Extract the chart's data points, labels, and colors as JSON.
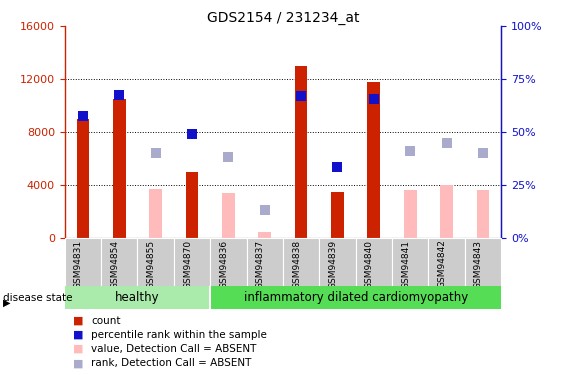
{
  "title": "GDS2154 / 231234_at",
  "samples": [
    "GSM94831",
    "GSM94854",
    "GSM94855",
    "GSM94870",
    "GSM94836",
    "GSM94837",
    "GSM94838",
    "GSM94839",
    "GSM94840",
    "GSM94841",
    "GSM94842",
    "GSM94843"
  ],
  "group_labels": [
    "healthy",
    "inflammatory dilated cardiomyopathy"
  ],
  "healthy_count": 4,
  "idc_count": 8,
  "count_present": [
    9000,
    10500,
    null,
    5000,
    null,
    null,
    13000,
    3500,
    11800,
    null,
    null,
    null
  ],
  "count_absent": [
    null,
    null,
    3700,
    null,
    3400,
    500,
    null,
    null,
    null,
    3600,
    4000,
    3600
  ],
  "rank_present": [
    9200,
    10800,
    null,
    7900,
    null,
    null,
    10700,
    5400,
    10500,
    null,
    null,
    null
  ],
  "rank_absent": [
    null,
    null,
    6400,
    null,
    6100,
    2100,
    null,
    null,
    null,
    6600,
    7200,
    6400
  ],
  "ylim_left": [
    0,
    16000
  ],
  "yticks_left": [
    0,
    4000,
    8000,
    12000,
    16000
  ],
  "yticks_right": [
    0,
    25,
    50,
    75,
    100
  ],
  "color_count_present": "#cc2200",
  "color_rank_present": "#1111cc",
  "color_count_absent": "#ffbbbb",
  "color_rank_absent": "#aaaacc",
  "color_healthy_bg": "#aaeaaa",
  "color_idc_bg": "#55dd55",
  "legend_items": [
    {
      "color": "#cc2200",
      "label": "count"
    },
    {
      "color": "#1111cc",
      "label": "percentile rank within the sample"
    },
    {
      "color": "#ffbbbb",
      "label": "value, Detection Call = ABSENT"
    },
    {
      "color": "#aaaacc",
      "label": "rank, Detection Call = ABSENT"
    }
  ]
}
